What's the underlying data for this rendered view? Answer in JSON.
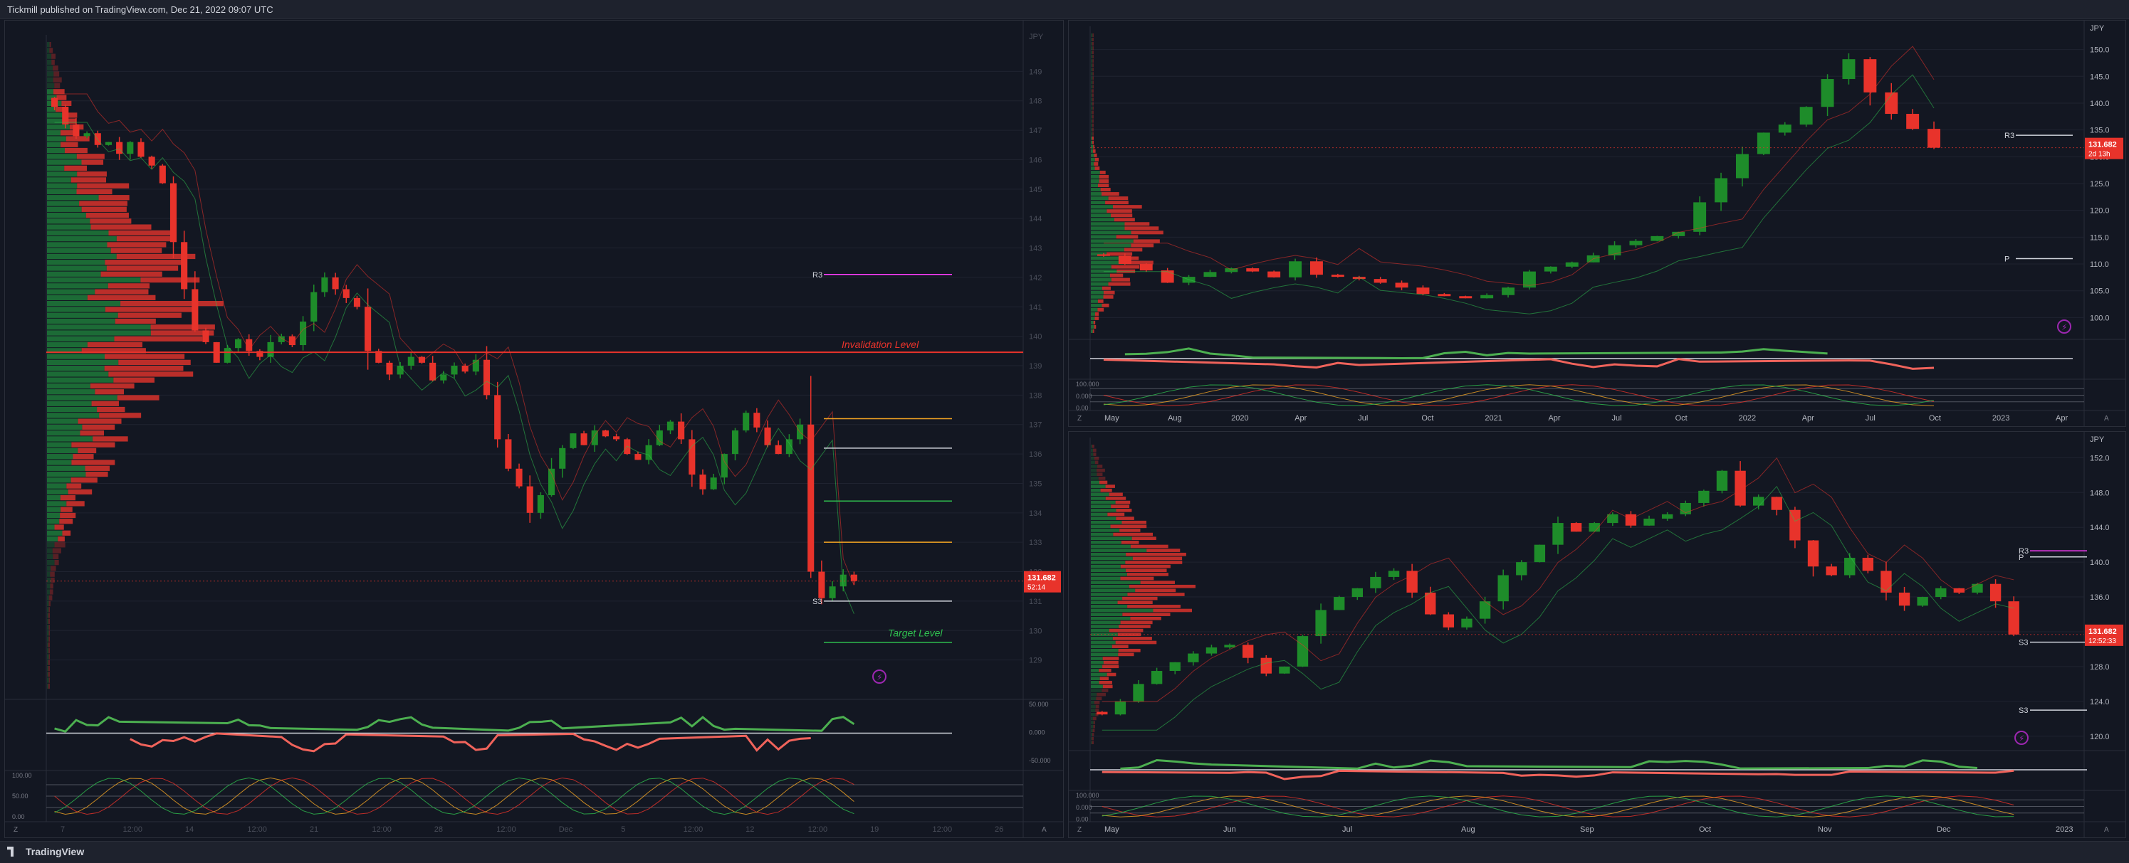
{
  "header": {
    "publisher_line": "Tickmill published on TradingView.com, Dec 21, 2022 09:07 UTC"
  },
  "footer": {
    "brand": "TradingView"
  },
  "colors": {
    "bull": "#26a69a",
    "bull_candle": "#1e8c2a",
    "bear": "#e8332b",
    "text": "#d1d4dc",
    "grid": "#1f2330",
    "axis_bg": "#131722"
  },
  "chart_data": [
    {
      "id": "left",
      "type": "candlestick",
      "currency": "JPY",
      "ylim": [
        128.0,
        150.0
      ],
      "y_ticks": [
        149.0,
        148.0,
        147.0,
        146.0,
        145.0,
        144.0,
        143.0,
        142.0,
        141.0,
        140.0,
        139.0,
        138.0,
        137.0,
        136.0,
        135.0,
        134.0,
        133.0,
        132.0,
        131.0,
        130.0,
        129.0
      ],
      "x_ticks": [
        "7",
        "12:00",
        "14",
        "12:00",
        "21",
        "12:00",
        "28",
        "12:00",
        "Dec",
        "5",
        "12:00",
        "12",
        "12:00",
        "19",
        "12:00",
        "26"
      ],
      "price_tag": {
        "price": "131.682",
        "countdown": "52:14"
      },
      "levels": [
        {
          "label": "R3",
          "price": 142.1,
          "color": "#ff3dff"
        },
        {
          "label": "",
          "price": 137.2,
          "color": "#f5a623"
        },
        {
          "label": "",
          "price": 136.2,
          "color": "#d1d4dc"
        },
        {
          "label": "",
          "price": 134.4,
          "color": "#2fbf4f"
        },
        {
          "label": "",
          "price": 133.0,
          "color": "#f5a623"
        },
        {
          "label": "S3",
          "price": 131.0,
          "color": "#d1d4dc"
        },
        {
          "label": "",
          "price": 129.6,
          "color": "#2fbf4f"
        }
      ],
      "annotations": [
        {
          "text": "Invalidation Level",
          "price": 139.6,
          "color": "#e8332b"
        },
        {
          "text": "Target Level",
          "price": 129.8,
          "color": "#2fbf4f"
        }
      ],
      "series": [
        {
          "name": "close",
          "values": [
            147.8,
            147.2,
            146.8,
            146.9,
            146.5,
            146.6,
            146.2,
            146.6,
            146.1,
            145.8,
            145.2,
            143.2,
            141.6,
            140.2,
            139.8,
            139.1,
            139.6,
            139.9,
            139.5,
            139.3,
            139.8,
            140.0,
            139.7,
            140.5,
            141.5,
            142.0,
            141.6,
            141.3,
            141.0,
            139.5,
            139.1,
            138.7,
            139.0,
            139.3,
            139.1,
            138.5,
            138.7,
            139.0,
            138.8,
            139.2,
            138.0,
            136.5,
            135.5,
            134.9,
            134.0,
            134.6,
            135.5,
            136.2,
            136.7,
            136.3,
            136.8,
            136.6,
            136.5,
            136.0,
            135.8,
            136.3,
            136.8,
            137.1,
            136.5,
            135.3,
            134.8,
            135.2,
            136.0,
            136.8,
            137.4,
            136.9,
            136.3,
            136.0,
            136.5,
            137.0,
            132.0,
            131.1,
            131.5,
            131.9,
            131.682
          ]
        }
      ],
      "indicators": {
        "rsi_upper": "",
        "stoch_ticks": [
          "100.00",
          "50.00",
          "0.00"
        ],
        "osc_ticks": [
          "50.000",
          "0.000",
          "-50.000"
        ]
      }
    },
    {
      "id": "top-right",
      "type": "candlestick",
      "currency": "JPY",
      "ylim": [
        97.0,
        153.0
      ],
      "y_ticks": [
        150.0,
        145.0,
        140.0,
        135.0,
        130.0,
        125.0,
        120.0,
        115.0,
        110.0,
        105.0,
        100.0
      ],
      "x_ticks": [
        "May",
        "Aug",
        "2020",
        "Apr",
        "Jul",
        "Oct",
        "2021",
        "Apr",
        "Jul",
        "Oct",
        "2022",
        "Apr",
        "Jul",
        "Oct",
        "2023",
        "Apr"
      ],
      "price_tag": {
        "price": "131.682",
        "countdown": "2d 13h"
      },
      "levels": [
        {
          "label": "R3",
          "price": 134.0,
          "color": "#d1d4dc"
        },
        {
          "label": "P",
          "price": 111.0,
          "color": "#d1d4dc"
        }
      ],
      "series": [
        {
          "name": "close",
          "values": [
            111.5,
            110.0,
            108.8,
            106.5,
            107.6,
            108.5,
            109.2,
            108.6,
            107.5,
            110.5,
            108.0,
            107.6,
            107.2,
            106.5,
            105.6,
            104.4,
            104.0,
            103.6,
            104.2,
            105.6,
            108.6,
            109.5,
            110.3,
            111.6,
            113.5,
            114.3,
            115.2,
            116.0,
            121.5,
            126.0,
            130.5,
            134.5,
            136.0,
            139.3,
            144.5,
            148.2,
            142.0,
            138.0,
            135.2,
            131.682
          ]
        }
      ],
      "indicators": {
        "stoch_ticks": [
          "100.000",
          "0.000",
          "0.00"
        ]
      }
    },
    {
      "id": "bottom-right",
      "type": "candlestick",
      "currency": "JPY",
      "ylim": [
        119.0,
        153.5
      ],
      "y_ticks": [
        152.0,
        148.0,
        144.0,
        140.0,
        136.0,
        132.0,
        128.0,
        124.0,
        120.0
      ],
      "x_ticks": [
        "May",
        "Jun",
        "Jul",
        "Aug",
        "Sep",
        "Oct",
        "Nov",
        "Dec",
        "2023"
      ],
      "price_tag": {
        "price": "131.682",
        "countdown": "12:52:33"
      },
      "levels": [
        {
          "label": "R3",
          "price": 141.3,
          "color": "#ff3dff"
        },
        {
          "label": "P",
          "price": 140.6,
          "color": "#d1d4dc"
        },
        {
          "label": "S3",
          "price": 130.8,
          "color": "#d1d4dc"
        },
        {
          "label": "S3",
          "price": 123.0,
          "color": "#d1d4dc"
        }
      ],
      "series": [
        {
          "name": "close",
          "values": [
            122.5,
            124.0,
            126.0,
            127.5,
            128.5,
            129.5,
            130.2,
            130.5,
            129.0,
            127.2,
            128.0,
            131.5,
            134.5,
            136.0,
            137.0,
            138.3,
            139.0,
            136.5,
            134.0,
            132.5,
            133.5,
            135.5,
            138.5,
            140.0,
            142.0,
            144.5,
            143.5,
            144.5,
            145.5,
            144.2,
            145.0,
            145.5,
            146.8,
            148.2,
            150.5,
            146.5,
            147.5,
            146.0,
            142.5,
            139.5,
            138.5,
            140.5,
            139.0,
            136.5,
            135.0,
            136.0,
            137.0,
            136.5,
            137.5,
            135.5,
            131.682
          ]
        }
      ],
      "indicators": {
        "stoch_ticks": [
          "100.000",
          "0.000",
          "0.00"
        ]
      }
    }
  ]
}
